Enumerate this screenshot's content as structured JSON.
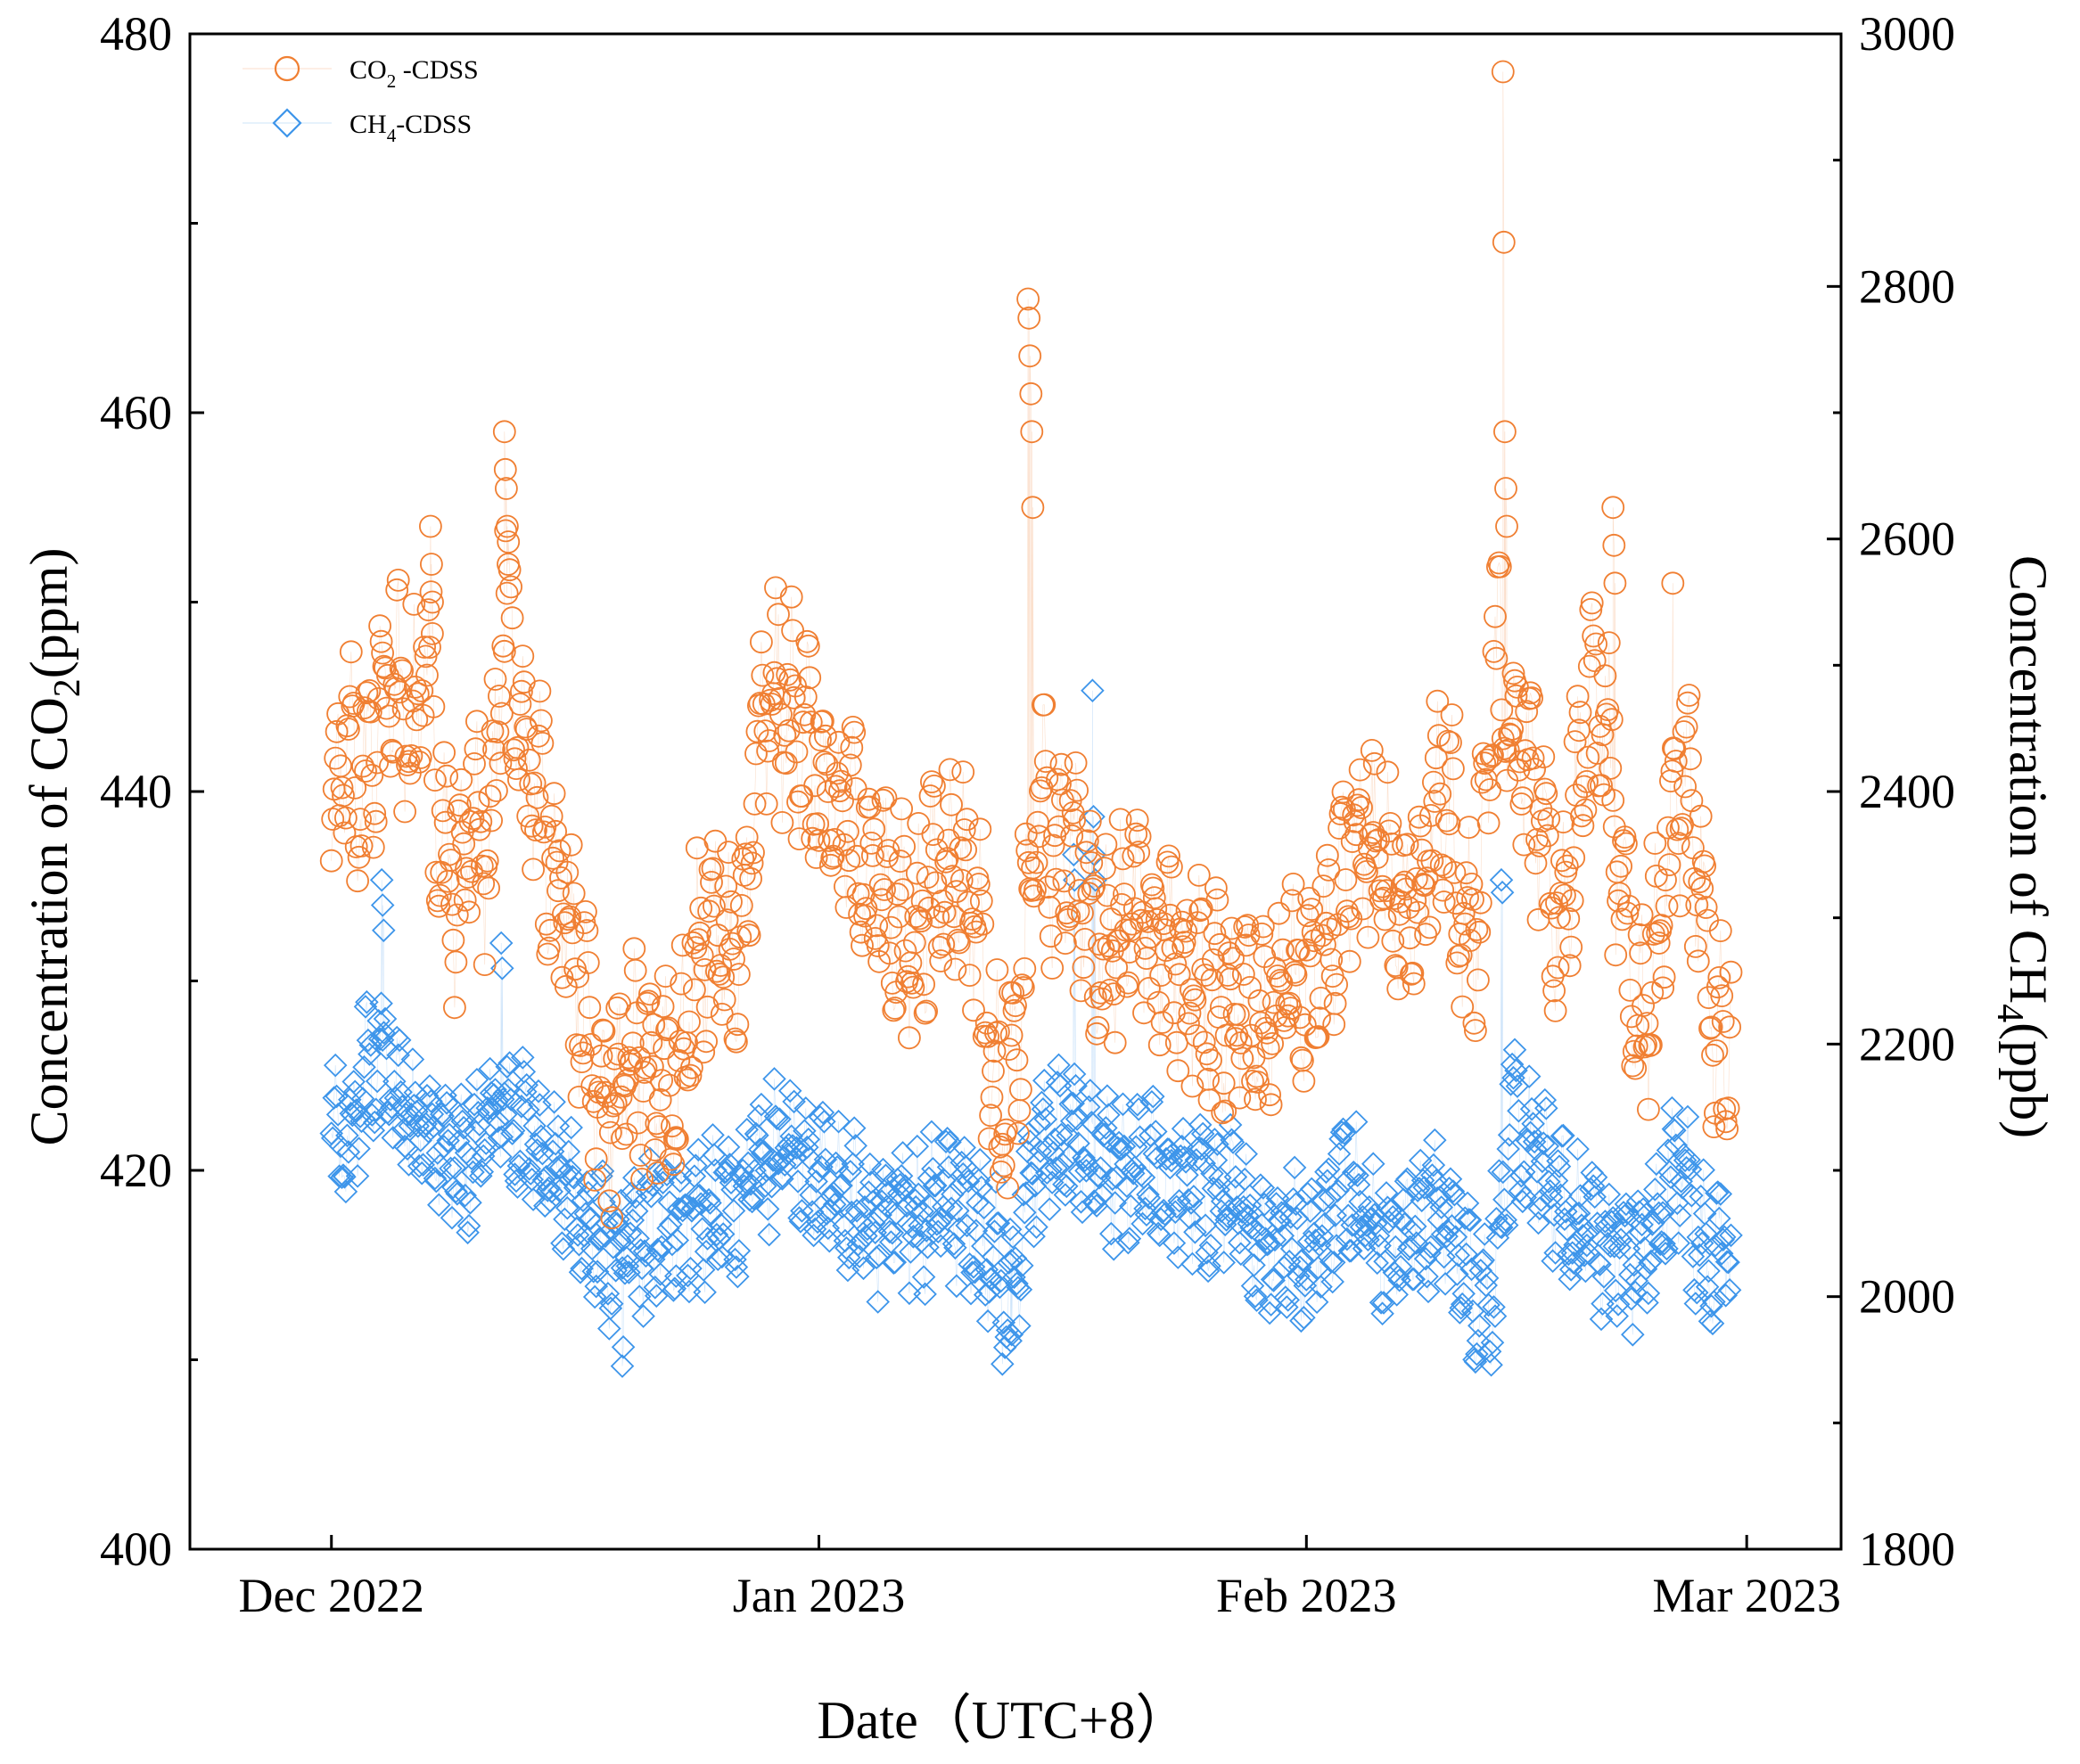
{
  "chart_data": {
    "type": "scatter",
    "xlabel": "Date（UTC+8）",
    "x_ticks": [
      {
        "label": "Dec 2022",
        "date": "2022-12-01"
      },
      {
        "label": "Jan 2023",
        "date": "2023-01-01"
      },
      {
        "label": "Feb 2023",
        "date": "2023-02-01"
      },
      {
        "label": "Mar 2023",
        "date": "2023-03-01"
      }
    ],
    "xlim": [
      "2022-11-22",
      "2023-03-07"
    ],
    "y_left": {
      "label_prefix": "Concentration of CO",
      "label_sub": "2",
      "label_suffix": "(ppm)",
      "ylim": [
        400,
        480
      ],
      "ticks": [
        "400",
        "420",
        "440",
        "460",
        "480"
      ]
    },
    "y_right": {
      "label_prefix": "Concentration of CH",
      "label_sub": "4",
      "label_suffix": "(ppb)",
      "ylim": [
        1800,
        3000
      ],
      "ticks": [
        "1800",
        "2000",
        "2200",
        "2400",
        "2600",
        "2800",
        "3000"
      ]
    },
    "legend_position": "top-left",
    "series": [
      {
        "name": "CO₂ -CDSS",
        "name_main": "CO",
        "name_sub": "2",
        "name_rest": " -CDSS",
        "axis": "left",
        "marker": "circle",
        "color": "#F07F32",
        "anchors": [
          {
            "day": 0,
            "value": 438
          },
          {
            "day": 1,
            "value": 442
          },
          {
            "day": 2,
            "value": 440
          },
          {
            "day": 3,
            "value": 444
          },
          {
            "day": 4,
            "value": 446
          },
          {
            "day": 5,
            "value": 442
          },
          {
            "day": 6,
            "value": 448
          },
          {
            "day": 7,
            "value": 438
          },
          {
            "day": 8,
            "value": 434
          },
          {
            "day": 9,
            "value": 440
          },
          {
            "day": 10,
            "value": 436
          },
          {
            "day": 11,
            "value": 450
          },
          {
            "day": 12,
            "value": 443
          },
          {
            "day": 13,
            "value": 440
          },
          {
            "day": 14,
            "value": 437
          },
          {
            "day": 15,
            "value": 434
          },
          {
            "day": 16,
            "value": 429
          },
          {
            "day": 17,
            "value": 425
          },
          {
            "day": 18,
            "value": 423
          },
          {
            "day": 19,
            "value": 426
          },
          {
            "day": 20,
            "value": 424
          },
          {
            "day": 21,
            "value": 426
          },
          {
            "day": 22,
            "value": 424
          },
          {
            "day": 23,
            "value": 430
          },
          {
            "day": 24,
            "value": 433
          },
          {
            "day": 25,
            "value": 432
          },
          {
            "day": 26,
            "value": 430
          },
          {
            "day": 27,
            "value": 441
          },
          {
            "day": 28,
            "value": 445
          },
          {
            "day": 29,
            "value": 444
          },
          {
            "day": 30,
            "value": 444
          },
          {
            "day": 31,
            "value": 440
          },
          {
            "day": 32,
            "value": 438
          },
          {
            "day": 33,
            "value": 439
          },
          {
            "day": 34,
            "value": 436
          },
          {
            "day": 35,
            "value": 435
          },
          {
            "day": 36,
            "value": 433
          },
          {
            "day": 37,
            "value": 432
          },
          {
            "day": 38,
            "value": 435
          },
          {
            "day": 39,
            "value": 436
          },
          {
            "day": 40,
            "value": 436
          },
          {
            "day": 41,
            "value": 434
          },
          {
            "day": 42,
            "value": 426
          },
          {
            "day": 43,
            "value": 422
          },
          {
            "day": 44,
            "value": 430
          },
          {
            "day": 45,
            "value": 440
          },
          {
            "day": 46,
            "value": 436
          },
          {
            "day": 47,
            "value": 438
          },
          {
            "day": 48,
            "value": 434
          },
          {
            "day": 49,
            "value": 432
          },
          {
            "day": 50,
            "value": 433
          },
          {
            "day": 51,
            "value": 434
          },
          {
            "day": 52,
            "value": 432
          },
          {
            "day": 53,
            "value": 432
          },
          {
            "day": 54,
            "value": 431
          },
          {
            "day": 55,
            "value": 430
          },
          {
            "day": 56,
            "value": 429
          },
          {
            "day": 57,
            "value": 429
          },
          {
            "day": 58,
            "value": 429
          },
          {
            "day": 59,
            "value": 429
          },
          {
            "day": 60,
            "value": 428
          },
          {
            "day": 61,
            "value": 430
          },
          {
            "day": 62,
            "value": 429
          },
          {
            "day": 63,
            "value": 431
          },
          {
            "day": 64,
            "value": 434
          },
          {
            "day": 65,
            "value": 437
          },
          {
            "day": 66,
            "value": 437
          },
          {
            "day": 67,
            "value": 436
          },
          {
            "day": 68,
            "value": 434
          },
          {
            "day": 69,
            "value": 434
          },
          {
            "day": 70,
            "value": 438
          },
          {
            "day": 71,
            "value": 440
          },
          {
            "day": 72,
            "value": 432
          },
          {
            "day": 73,
            "value": 434
          },
          {
            "day": 74,
            "value": 448
          },
          {
            "day": 75,
            "value": 442
          },
          {
            "day": 76,
            "value": 442
          },
          {
            "day": 77,
            "value": 439
          },
          {
            "day": 78,
            "value": 433
          },
          {
            "day": 79,
            "value": 438
          },
          {
            "day": 80,
            "value": 445
          },
          {
            "day": 81,
            "value": 444
          },
          {
            "day": 82,
            "value": 434
          },
          {
            "day": 83,
            "value": 428
          },
          {
            "day": 84,
            "value": 430
          },
          {
            "day": 85,
            "value": 437
          },
          {
            "day": 86,
            "value": 441
          },
          {
            "day": 87,
            "value": 435
          },
          {
            "day": 88,
            "value": 426
          },
          {
            "day": 89,
            "value": 428
          }
        ],
        "spikes": [
          {
            "day": 11,
            "values": [
              459,
              457,
              456,
              454,
              452
            ]
          },
          {
            "day": 44.3,
            "values": [
              466,
              465,
              463,
              461,
              459,
              455
            ]
          },
          {
            "day": 74.5,
            "values": [
              478,
              469,
              459,
              456,
              454
            ]
          },
          {
            "day": 81.5,
            "values": [
              455,
              453,
              451
            ]
          },
          {
            "day": 85.3,
            "values": [
              451
            ]
          },
          {
            "day": 6.3,
            "values": [
              454,
              452,
              450
            ]
          }
        ]
      },
      {
        "name": "CH₄-CDSS",
        "name_main": "CH",
        "name_sub": "4",
        "name_rest": "-CDSS",
        "axis": "right",
        "marker": "diamond",
        "color": "#3D95EA",
        "anchors": [
          {
            "day": 0,
            "value": 2120
          },
          {
            "day": 1,
            "value": 2110
          },
          {
            "day": 2,
            "value": 2170
          },
          {
            "day": 3,
            "value": 2190
          },
          {
            "day": 4,
            "value": 2165
          },
          {
            "day": 5,
            "value": 2150
          },
          {
            "day": 6,
            "value": 2130
          },
          {
            "day": 7,
            "value": 2120
          },
          {
            "day": 8,
            "value": 2100
          },
          {
            "day": 9,
            "value": 2110
          },
          {
            "day": 10,
            "value": 2140
          },
          {
            "day": 11,
            "value": 2150
          },
          {
            "day": 12,
            "value": 2130
          },
          {
            "day": 13,
            "value": 2130
          },
          {
            "day": 14,
            "value": 2100
          },
          {
            "day": 15,
            "value": 2085
          },
          {
            "day": 16,
            "value": 2060
          },
          {
            "day": 17,
            "value": 2040
          },
          {
            "day": 18,
            "value": 2030
          },
          {
            "day": 19,
            "value": 2040
          },
          {
            "day": 20,
            "value": 2045
          },
          {
            "day": 21,
            "value": 2050
          },
          {
            "day": 22,
            "value": 2060
          },
          {
            "day": 23,
            "value": 2070
          },
          {
            "day": 24,
            "value": 2060
          },
          {
            "day": 25,
            "value": 2070
          },
          {
            "day": 26,
            "value": 2075
          },
          {
            "day": 27,
            "value": 2100
          },
          {
            "day": 28,
            "value": 2110
          },
          {
            "day": 29,
            "value": 2120
          },
          {
            "day": 30,
            "value": 2110
          },
          {
            "day": 31,
            "value": 2100
          },
          {
            "day": 32,
            "value": 2090
          },
          {
            "day": 33,
            "value": 2075
          },
          {
            "day": 34,
            "value": 2060
          },
          {
            "day": 35,
            "value": 2060
          },
          {
            "day": 36,
            "value": 2065
          },
          {
            "day": 37,
            "value": 2060
          },
          {
            "day": 38,
            "value": 2070
          },
          {
            "day": 39,
            "value": 2080
          },
          {
            "day": 40,
            "value": 2070
          },
          {
            "day": 41,
            "value": 2060
          },
          {
            "day": 42,
            "value": 2040
          },
          {
            "day": 43,
            "value": 1985
          },
          {
            "day": 44,
            "value": 2060
          },
          {
            "day": 45,
            "value": 2120
          },
          {
            "day": 46,
            "value": 2110
          },
          {
            "day": 47,
            "value": 2140
          },
          {
            "day": 48,
            "value": 2110
          },
          {
            "day": 49,
            "value": 2100
          },
          {
            "day": 50,
            "value": 2095
          },
          {
            "day": 51,
            "value": 2090
          },
          {
            "day": 52,
            "value": 2100
          },
          {
            "day": 53,
            "value": 2090
          },
          {
            "day": 54,
            "value": 2085
          },
          {
            "day": 55,
            "value": 2085
          },
          {
            "day": 56,
            "value": 2080
          },
          {
            "day": 57,
            "value": 2080
          },
          {
            "day": 58,
            "value": 2060
          },
          {
            "day": 59,
            "value": 2050
          },
          {
            "day": 60,
            "value": 2045
          },
          {
            "day": 61,
            "value": 2040
          },
          {
            "day": 62,
            "value": 2040
          },
          {
            "day": 63,
            "value": 2050
          },
          {
            "day": 64,
            "value": 2080
          },
          {
            "day": 65,
            "value": 2100
          },
          {
            "day": 66,
            "value": 2060
          },
          {
            "day": 67,
            "value": 2040
          },
          {
            "day": 68,
            "value": 2045
          },
          {
            "day": 69,
            "value": 2060
          },
          {
            "day": 70,
            "value": 2070
          },
          {
            "day": 71,
            "value": 2055
          },
          {
            "day": 72,
            "value": 2030
          },
          {
            "day": 73,
            "value": 2000
          },
          {
            "day": 74,
            "value": 2010
          },
          {
            "day": 75,
            "value": 2140
          },
          {
            "day": 76,
            "value": 2120
          },
          {
            "day": 77,
            "value": 2100
          },
          {
            "day": 78,
            "value": 2080
          },
          {
            "day": 79,
            "value": 2050
          },
          {
            "day": 80,
            "value": 2060
          },
          {
            "day": 81,
            "value": 2040
          },
          {
            "day": 82,
            "value": 2035
          },
          {
            "day": 83,
            "value": 2030
          },
          {
            "day": 84,
            "value": 2040
          },
          {
            "day": 85,
            "value": 2090
          },
          {
            "day": 86,
            "value": 2100
          },
          {
            "day": 87,
            "value": 2040
          },
          {
            "day": 88,
            "value": 2035
          },
          {
            "day": 89,
            "value": 2050
          }
        ],
        "spikes": [
          {
            "day": 3.2,
            "values": [
              2330,
              2310,
              2290
            ]
          },
          {
            "day": 10.8,
            "values": [
              2280,
              2260
            ]
          },
          {
            "day": 48.4,
            "values": [
              2480,
              2380,
              2350,
              2330
            ]
          },
          {
            "day": 47.2,
            "values": [
              2350,
              2330
            ]
          },
          {
            "day": 74.4,
            "values": [
              2330,
              2320
            ]
          },
          {
            "day": 18.5,
            "values": [
              1945,
              1960
            ]
          },
          {
            "day": 43.2,
            "values": [
              1965,
              1970
            ]
          }
        ]
      }
    ]
  }
}
